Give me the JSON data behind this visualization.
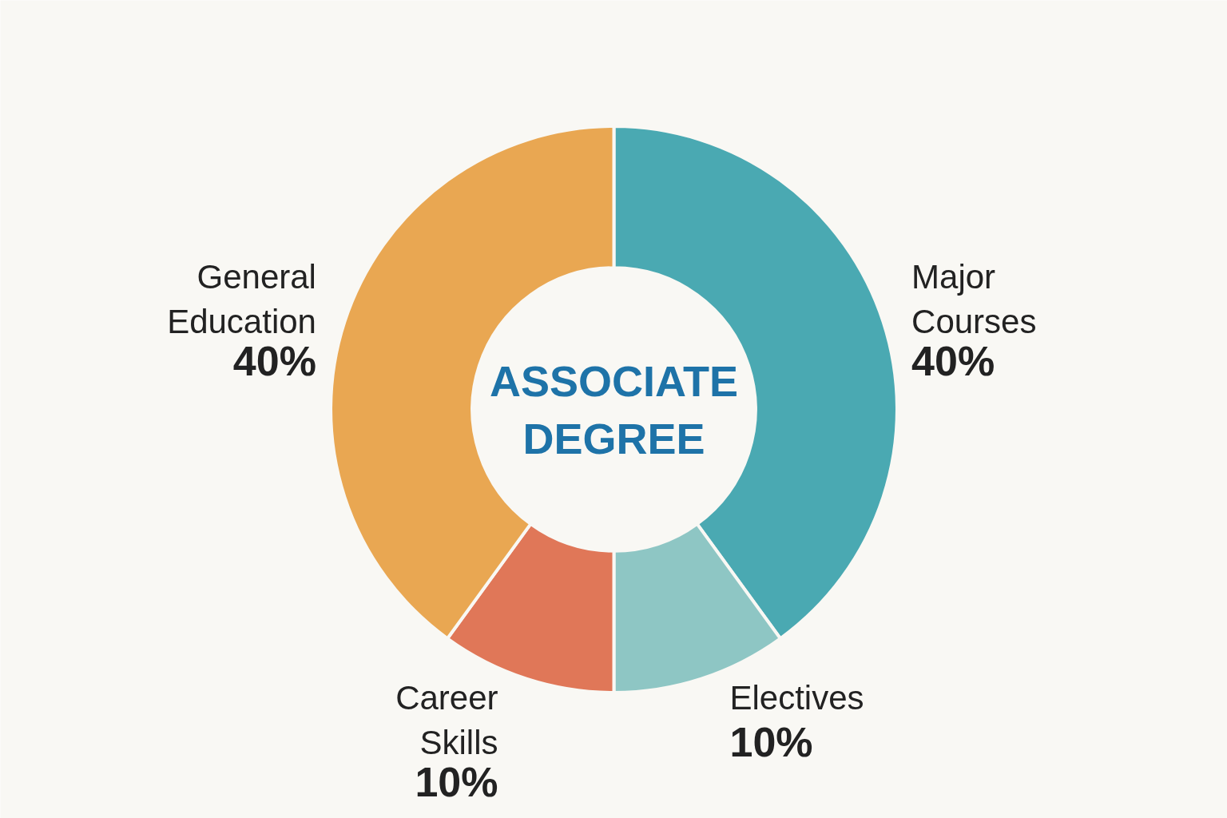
{
  "chart_data": {
    "type": "donut",
    "title": "ASSOCIATE DEGREE",
    "categories": [
      "Major Courses",
      "Electives",
      "Career Skills",
      "General Education"
    ],
    "values": [
      40,
      10,
      10,
      40
    ],
    "colors": [
      "#4aa9b2",
      "#8ec6c4",
      "#e07758",
      "#e9a752"
    ],
    "value_labels": [
      "40%",
      "10%",
      "10%",
      "40%"
    ]
  }
}
